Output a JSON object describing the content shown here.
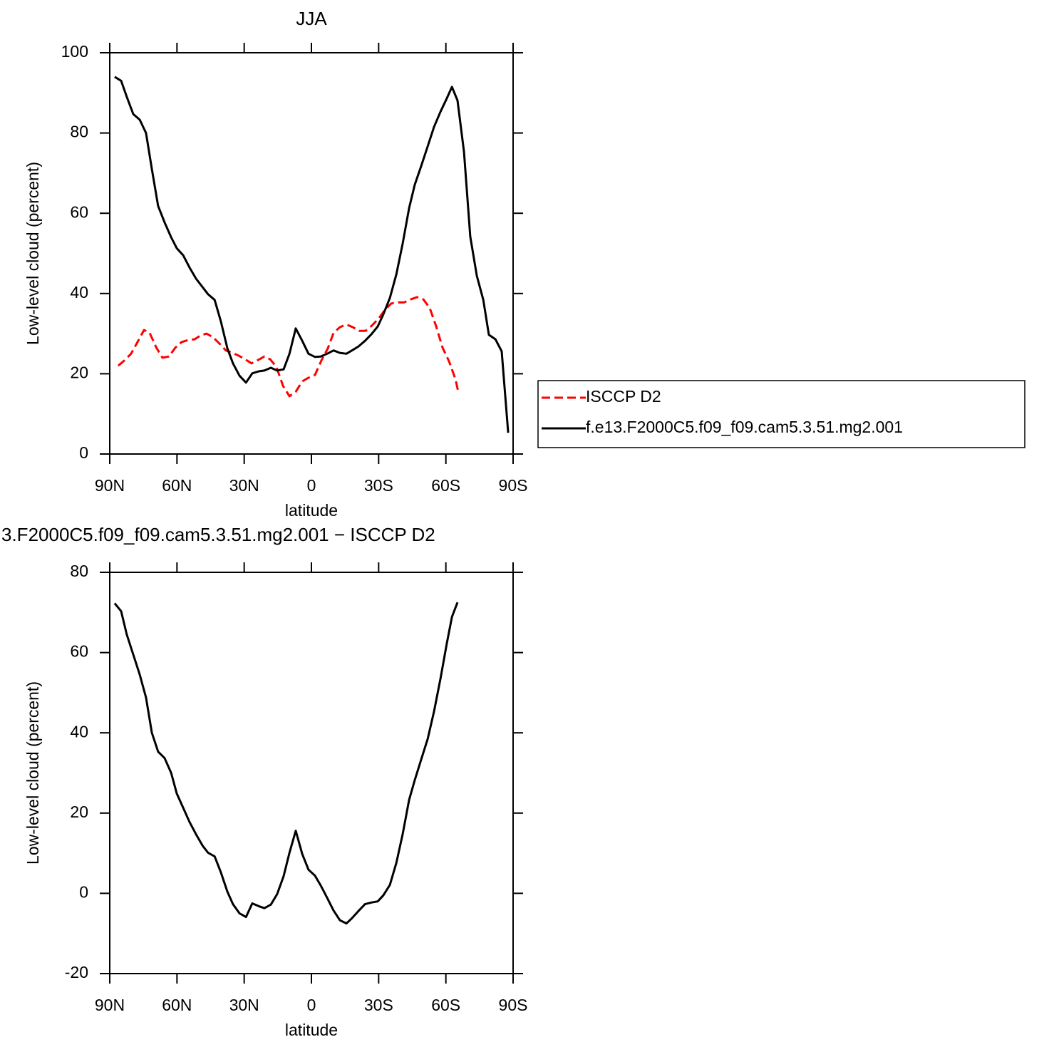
{
  "chart_data": [
    {
      "type": "line",
      "title": "JJA",
      "ylabel": "Low-level cloud (percent)",
      "xlabel": "latitude",
      "xlim": [
        90,
        -90
      ],
      "xticks": [
        {
          "value": 90,
          "label": "90N"
        },
        {
          "value": 60,
          "label": "60N"
        },
        {
          "value": 30,
          "label": "30N"
        },
        0,
        {
          "value": -30,
          "label": "30S"
        },
        {
          "value": -60,
          "label": "60S"
        },
        {
          "value": -90,
          "label": "90S"
        }
      ],
      "ylim": [
        0,
        100
      ],
      "yticks": [
        0,
        20,
        40,
        60,
        80,
        100
      ],
      "legend": "right",
      "series": [
        {
          "name": "ISCCP D2",
          "color": "#ff0000",
          "line_style": "dashed",
          "x": [
            86.2,
            83.3,
            80.5,
            77.6,
            74.7,
            72.2,
            69.3,
            66.5,
            63.6,
            60.7,
            57.9,
            55.0,
            52.1,
            49.6,
            46.8,
            43.9,
            41.0,
            38.2,
            35.3,
            32.4,
            29.6,
            26.7,
            23.9,
            21.0,
            18.4,
            15.6,
            12.7,
            9.8,
            7.0,
            4.1,
            1.3,
            -1.6,
            -4.5,
            -7.3,
            -9.9,
            -12.7,
            -15.6,
            -18.5,
            -21.3,
            -24.2,
            -27.0,
            -29.9,
            -32.8,
            -35.6,
            -38.5,
            -41.4,
            -44.2,
            -47.1,
            -50.0,
            -52.8,
            -55.7,
            -58.5,
            -61.4,
            -64.3,
            -65.6
          ],
          "values": [
            22,
            23.4,
            25,
            27.9,
            30.9,
            30.2,
            26.6,
            24,
            24.3,
            26.5,
            27.9,
            28.4,
            28.6,
            29.5,
            30,
            29.1,
            27.5,
            25.8,
            25.2,
            24.5,
            23.6,
            22.6,
            23.4,
            24.3,
            23.6,
            21.7,
            17,
            14.4,
            15.5,
            18.1,
            19,
            19.7,
            23.4,
            26.3,
            30.2,
            31.6,
            32.3,
            31.6,
            30.7,
            30.7,
            32,
            33.7,
            35.9,
            37.5,
            37.8,
            37.8,
            38.5,
            39.1,
            38.5,
            36.4,
            31.8,
            26.5,
            23.1,
            18.6,
            15.3
          ]
        },
        {
          "name": "f.e13.F2000C5.f09_f09.cam5.3.51.mg2.001",
          "color": "#000000",
          "line_style": "solid",
          "x": [
            87.8,
            84.9,
            82.4,
            79.5,
            76.6,
            73.8,
            71.2,
            68.4,
            65.5,
            62.6,
            60.1,
            57.2,
            54.4,
            51.5,
            48.6,
            46.1,
            43.2,
            40.4,
            37.5,
            35.0,
            32.1,
            29.2,
            26.4,
            23.5,
            21.0,
            18.1,
            15.3,
            12.4,
            9.8,
            7.0,
            4.1,
            1.3,
            -1.6,
            -4.1,
            -7.0,
            -9.9,
            -12.7,
            -15.6,
            -18.1,
            -21.0,
            -23.9,
            -26.7,
            -29.6,
            -32.1,
            -35.0,
            -37.9,
            -40.7,
            -43.6,
            -46.1,
            -49.0,
            -51.9,
            -54.7,
            -57.6,
            -60.4,
            -62.7,
            -65.2,
            -68.1,
            -70.9,
            -73.8,
            -76.7,
            -79.2,
            -82.1,
            -84.9,
            -87.8
          ],
          "values": [
            94,
            93,
            89,
            84.7,
            83.3,
            80,
            71,
            61.8,
            57.7,
            54,
            51.3,
            49.5,
            46.5,
            43.7,
            41.6,
            39.8,
            38.4,
            33,
            26.3,
            22.6,
            19.5,
            17.8,
            20.1,
            20.6,
            20.8,
            21.5,
            20.8,
            21.1,
            25,
            31.3,
            28.2,
            25,
            24.2,
            24.3,
            25,
            25.8,
            25.2,
            25,
            25.8,
            26.8,
            28.2,
            29.8,
            31.8,
            34.8,
            38.9,
            44.8,
            52.4,
            61.3,
            67.1,
            71.8,
            76.7,
            81.5,
            85.3,
            88.6,
            91.5,
            88.1,
            75.3,
            54.2,
            44.4,
            38.4,
            29.7,
            28.6,
            25.6,
            5.3
          ]
        }
      ]
    },
    {
      "type": "line",
      "title": "3.F2000C5.f09_f09.cam5.3.51.mg2.001 − ISCCP D2",
      "ylabel": "Low-level cloud (percent)",
      "xlabel": "latitude",
      "xlim": [
        90,
        -90
      ],
      "xticks": [
        {
          "value": 90,
          "label": "90N"
        },
        {
          "value": 60,
          "label": "60N"
        },
        {
          "value": 30,
          "label": "30N"
        },
        0,
        {
          "value": -30,
          "label": "30S"
        },
        {
          "value": -60,
          "label": "60S"
        },
        {
          "value": -90,
          "label": "90S"
        }
      ],
      "ylim": [
        -20,
        80
      ],
      "yticks": [
        -20,
        0,
        20,
        40,
        60,
        80
      ],
      "series": [
        {
          "color": "#000000",
          "line_style": "solid",
          "x": [
            87.8,
            84.9,
            82.4,
            79.5,
            76.6,
            73.8,
            71.2,
            68.4,
            65.5,
            62.6,
            60.1,
            57.2,
            54.4,
            51.5,
            48.6,
            46.1,
            43.2,
            40.4,
            37.5,
            35.0,
            32.1,
            29.2,
            26.4,
            23.5,
            21.0,
            18.1,
            15.3,
            12.4,
            9.8,
            7.0,
            4.1,
            1.3,
            -1.6,
            -4.1,
            -7.0,
            -9.9,
            -12.7,
            -15.6,
            -18.1,
            -21.0,
            -23.9,
            -26.7,
            -29.6,
            -32.1,
            -35.0,
            -37.9,
            -40.7,
            -43.6,
            -46.1,
            -49.0,
            -51.9,
            -54.7,
            -57.6,
            -60.4,
            -62.7,
            -65.2
          ],
          "values": [
            72.3,
            70.3,
            64.5,
            59.5,
            54.5,
            48.8,
            40,
            35.3,
            33.7,
            30,
            24.9,
            21.3,
            17.8,
            14.7,
            11.9,
            10.1,
            9.2,
            5.2,
            0.4,
            -2.7,
            -5,
            -5.9,
            -2.5,
            -3.2,
            -3.7,
            -2.8,
            -0.2,
            4.3,
            10.1,
            15.6,
            9.8,
            5.9,
            4.4,
            2,
            -1.1,
            -4.3,
            -6.7,
            -7.5,
            -6.2,
            -4.4,
            -2.7,
            -2.3,
            -2,
            -0.5,
            2.1,
            7.6,
            14.7,
            23.3,
            28.2,
            33.4,
            38.5,
            45.3,
            53.5,
            62.2,
            68.9,
            72.5
          ]
        }
      ]
    }
  ]
}
